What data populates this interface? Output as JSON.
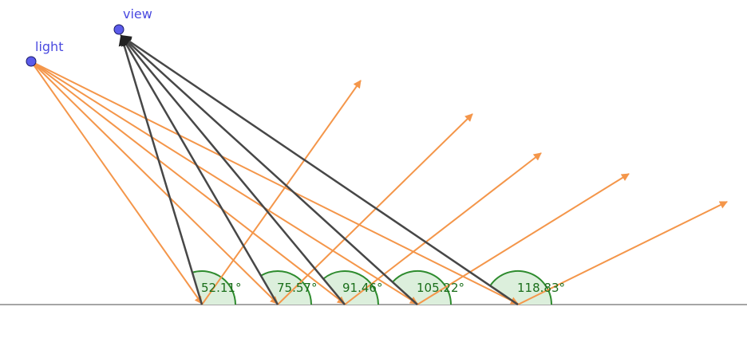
{
  "points": {
    "light": {
      "label": "light",
      "color": "#5b5bea"
    },
    "view": {
      "label": "view",
      "color": "#5b5bea"
    }
  },
  "angles": [
    {
      "label": "52.11°"
    },
    {
      "label": "75.57°"
    },
    {
      "label": "91.46°"
    },
    {
      "label": "105.22°"
    },
    {
      "label": "118.83°"
    }
  ],
  "colors": {
    "ray": "#f4964a",
    "view_line": "#474747",
    "angle_fill": "#dcefdc",
    "angle_stroke": "#2e8b2e",
    "angle_text": "#1a6e1a",
    "surface": "#a6a6a6"
  }
}
